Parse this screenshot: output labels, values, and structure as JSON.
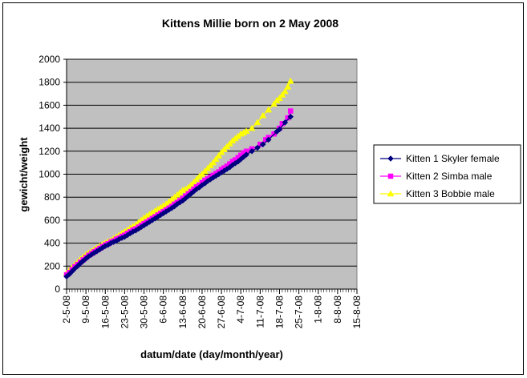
{
  "chart_data": {
    "type": "line",
    "title": "Kittens Millie born on 2 May 2008",
    "xlabel": "datum/date (day/month/year)",
    "ylabel": "gewicht/weight",
    "ylim": [
      0,
      2000
    ],
    "yticks": [
      0,
      200,
      400,
      600,
      800,
      1000,
      1200,
      1400,
      1600,
      1800,
      2000
    ],
    "xlim": [
      "2-5-08",
      "15-8-08"
    ],
    "xtick_labels": [
      "2-5-08",
      "9-5-08",
      "16-5-08",
      "23-5-08",
      "30-5-08",
      "6-6-08",
      "13-6-08",
      "20-6-08",
      "27-6-08",
      "4-7-08",
      "11-7-08",
      "18-7-08",
      "25-7-08",
      "1-8-08",
      "8-8-08",
      "15-8-08"
    ],
    "grid": "horizontal",
    "plot_background": "#c0c0c0",
    "legend_position": "right",
    "series": [
      {
        "name": "Kitten 1 Skyler female",
        "color": "#000080",
        "marker": "diamond",
        "points": [
          [
            "2-5-08",
            110
          ],
          [
            "3-5-08",
            130
          ],
          [
            "4-5-08",
            155
          ],
          [
            "5-5-08",
            180
          ],
          [
            "6-5-08",
            200
          ],
          [
            "7-5-08",
            225
          ],
          [
            "8-5-08",
            245
          ],
          [
            "9-5-08",
            265
          ],
          [
            "10-5-08",
            285
          ],
          [
            "11-5-08",
            300
          ],
          [
            "12-5-08",
            315
          ],
          [
            "13-5-08",
            330
          ],
          [
            "14-5-08",
            345
          ],
          [
            "15-5-08",
            360
          ],
          [
            "16-5-08",
            375
          ],
          [
            "17-5-08",
            385
          ],
          [
            "18-5-08",
            400
          ],
          [
            "19-5-08",
            410
          ],
          [
            "20-5-08",
            420
          ],
          [
            "21-5-08",
            435
          ],
          [
            "22-5-08",
            445
          ],
          [
            "23-5-08",
            455
          ],
          [
            "24-5-08",
            470
          ],
          [
            "25-5-08",
            485
          ],
          [
            "26-5-08",
            500
          ],
          [
            "27-5-08",
            510
          ],
          [
            "28-5-08",
            525
          ],
          [
            "29-5-08",
            540
          ],
          [
            "30-5-08",
            555
          ],
          [
            "31-5-08",
            570
          ],
          [
            "1-6-08",
            585
          ],
          [
            "2-6-08",
            600
          ],
          [
            "3-6-08",
            615
          ],
          [
            "4-6-08",
            630
          ],
          [
            "5-6-08",
            645
          ],
          [
            "6-6-08",
            660
          ],
          [
            "7-6-08",
            675
          ],
          [
            "8-6-08",
            690
          ],
          [
            "9-6-08",
            705
          ],
          [
            "10-6-08",
            720
          ],
          [
            "11-6-08",
            740
          ],
          [
            "12-6-08",
            755
          ],
          [
            "13-6-08",
            770
          ],
          [
            "14-6-08",
            790
          ],
          [
            "15-6-08",
            810
          ],
          [
            "16-6-08",
            830
          ],
          [
            "17-6-08",
            850
          ],
          [
            "18-6-08",
            870
          ],
          [
            "19-6-08",
            885
          ],
          [
            "20-6-08",
            905
          ],
          [
            "21-6-08",
            920
          ],
          [
            "22-6-08",
            940
          ],
          [
            "23-6-08",
            955
          ],
          [
            "24-6-08",
            970
          ],
          [
            "25-6-08",
            985
          ],
          [
            "26-6-08",
            1000
          ],
          [
            "27-6-08",
            1015
          ],
          [
            "28-6-08",
            1030
          ],
          [
            "29-6-08",
            1045
          ],
          [
            "30-6-08",
            1060
          ],
          [
            "1-7-08",
            1080
          ],
          [
            "2-7-08",
            1095
          ],
          [
            "3-7-08",
            1110
          ],
          [
            "4-7-08",
            1130
          ],
          [
            "5-7-08",
            1150
          ],
          [
            "6-7-08",
            1170
          ],
          [
            "8-7-08",
            1200
          ],
          [
            "10-7-08",
            1230
          ],
          [
            "12-7-08",
            1260
          ],
          [
            "14-7-08",
            1300
          ],
          [
            "17-7-08",
            1370
          ],
          [
            "18-7-08",
            1390
          ],
          [
            "20-7-08",
            1450
          ],
          [
            "22-7-08",
            1500
          ]
        ]
      },
      {
        "name": "Kitten 2 Simba male",
        "color": "#ff00ff",
        "marker": "square",
        "points": [
          [
            "2-5-08",
            125
          ],
          [
            "3-5-08",
            145
          ],
          [
            "4-5-08",
            170
          ],
          [
            "5-5-08",
            195
          ],
          [
            "6-5-08",
            215
          ],
          [
            "7-5-08",
            235
          ],
          [
            "8-5-08",
            255
          ],
          [
            "9-5-08",
            275
          ],
          [
            "10-5-08",
            295
          ],
          [
            "11-5-08",
            310
          ],
          [
            "12-5-08",
            325
          ],
          [
            "13-5-08",
            340
          ],
          [
            "14-5-08",
            355
          ],
          [
            "15-5-08",
            370
          ],
          [
            "16-5-08",
            385
          ],
          [
            "17-5-08",
            395
          ],
          [
            "18-5-08",
            410
          ],
          [
            "19-5-08",
            420
          ],
          [
            "20-5-08",
            435
          ],
          [
            "21-5-08",
            445
          ],
          [
            "22-5-08",
            460
          ],
          [
            "23-5-08",
            470
          ],
          [
            "24-5-08",
            485
          ],
          [
            "25-5-08",
            500
          ],
          [
            "26-5-08",
            515
          ],
          [
            "27-5-08",
            525
          ],
          [
            "28-5-08",
            540
          ],
          [
            "29-5-08",
            555
          ],
          [
            "30-5-08",
            570
          ],
          [
            "31-5-08",
            585
          ],
          [
            "1-6-08",
            600
          ],
          [
            "2-6-08",
            615
          ],
          [
            "3-6-08",
            630
          ],
          [
            "4-6-08",
            645
          ],
          [
            "5-6-08",
            660
          ],
          [
            "6-6-08",
            675
          ],
          [
            "7-6-08",
            690
          ],
          [
            "8-6-08",
            705
          ],
          [
            "9-6-08",
            720
          ],
          [
            "10-6-08",
            740
          ],
          [
            "11-6-08",
            755
          ],
          [
            "12-6-08",
            770
          ],
          [
            "13-6-08",
            790
          ],
          [
            "14-6-08",
            810
          ],
          [
            "15-6-08",
            830
          ],
          [
            "16-6-08",
            850
          ],
          [
            "17-6-08",
            870
          ],
          [
            "18-6-08",
            890
          ],
          [
            "19-6-08",
            905
          ],
          [
            "20-6-08",
            925
          ],
          [
            "21-6-08",
            945
          ],
          [
            "22-6-08",
            960
          ],
          [
            "23-6-08",
            975
          ],
          [
            "24-6-08",
            990
          ],
          [
            "25-6-08",
            1005
          ],
          [
            "26-6-08",
            1020
          ],
          [
            "27-6-08",
            1040
          ],
          [
            "28-6-08",
            1055
          ],
          [
            "29-6-08",
            1070
          ],
          [
            "30-6-08",
            1090
          ],
          [
            "1-7-08",
            1110
          ],
          [
            "2-7-08",
            1125
          ],
          [
            "3-7-08",
            1145
          ],
          [
            "4-7-08",
            1165
          ],
          [
            "5-7-08",
            1185
          ],
          [
            "6-7-08",
            1200
          ],
          [
            "8-7-08",
            1220
          ],
          [
            "11-7-08",
            1260
          ],
          [
            "13-7-08",
            1300
          ],
          [
            "14-7-08",
            1320
          ],
          [
            "16-7-08",
            1350
          ],
          [
            "18-7-08",
            1400
          ],
          [
            "19-7-08",
            1440
          ],
          [
            "21-7-08",
            1490
          ],
          [
            "22-7-08",
            1550
          ]
        ]
      },
      {
        "name": "Kitten 3 Bobbie male",
        "color": "#ffff00",
        "marker": "triangle",
        "points": [
          [
            "2-5-08",
            140
          ],
          [
            "3-5-08",
            165
          ],
          [
            "4-5-08",
            190
          ],
          [
            "5-5-08",
            215
          ],
          [
            "6-5-08",
            235
          ],
          [
            "7-5-08",
            260
          ],
          [
            "8-5-08",
            280
          ],
          [
            "9-5-08",
            300
          ],
          [
            "10-5-08",
            315
          ],
          [
            "11-5-08",
            330
          ],
          [
            "12-5-08",
            345
          ],
          [
            "13-5-08",
            360
          ],
          [
            "14-5-08",
            375
          ],
          [
            "15-5-08",
            390
          ],
          [
            "16-5-08",
            400
          ],
          [
            "17-5-08",
            415
          ],
          [
            "18-5-08",
            425
          ],
          [
            "19-5-08",
            440
          ],
          [
            "20-5-08",
            455
          ],
          [
            "21-5-08",
            470
          ],
          [
            "22-5-08",
            485
          ],
          [
            "23-5-08",
            500
          ],
          [
            "24-5-08",
            515
          ],
          [
            "25-5-08",
            530
          ],
          [
            "26-5-08",
            545
          ],
          [
            "27-5-08",
            560
          ],
          [
            "28-5-08",
            580
          ],
          [
            "29-5-08",
            600
          ],
          [
            "30-5-08",
            620
          ],
          [
            "31-5-08",
            635
          ],
          [
            "1-6-08",
            650
          ],
          [
            "2-6-08",
            665
          ],
          [
            "3-6-08",
            680
          ],
          [
            "4-6-08",
            695
          ],
          [
            "5-6-08",
            710
          ],
          [
            "6-6-08",
            725
          ],
          [
            "7-6-08",
            740
          ],
          [
            "8-6-08",
            760
          ],
          [
            "9-6-08",
            780
          ],
          [
            "10-6-08",
            800
          ],
          [
            "11-6-08",
            820
          ],
          [
            "12-6-08",
            840
          ],
          [
            "13-6-08",
            860
          ],
          [
            "14-6-08",
            870
          ],
          [
            "15-6-08",
            885
          ],
          [
            "16-6-08",
            905
          ],
          [
            "17-6-08",
            930
          ],
          [
            "18-6-08",
            955
          ],
          [
            "19-6-08",
            980
          ],
          [
            "20-6-08",
            1000
          ],
          [
            "21-6-08",
            1025
          ],
          [
            "22-6-08",
            1050
          ],
          [
            "23-6-08",
            1075
          ],
          [
            "24-6-08",
            1100
          ],
          [
            "25-6-08",
            1130
          ],
          [
            "26-6-08",
            1160
          ],
          [
            "27-6-08",
            1190
          ],
          [
            "28-6-08",
            1215
          ],
          [
            "29-6-08",
            1240
          ],
          [
            "30-6-08",
            1265
          ],
          [
            "1-7-08",
            1290
          ],
          [
            "2-7-08",
            1310
          ],
          [
            "3-7-08",
            1330
          ],
          [
            "4-7-08",
            1350
          ],
          [
            "5-7-08",
            1360
          ],
          [
            "6-7-08",
            1375
          ],
          [
            "8-7-08",
            1400
          ],
          [
            "10-7-08",
            1450
          ],
          [
            "12-7-08",
            1510
          ],
          [
            "14-7-08",
            1560
          ],
          [
            "16-7-08",
            1610
          ],
          [
            "17-7-08",
            1640
          ],
          [
            "18-7-08",
            1660
          ],
          [
            "19-7-08",
            1690
          ],
          [
            "20-7-08",
            1720
          ],
          [
            "21-7-08",
            1760
          ],
          [
            "22-7-08",
            1810
          ]
        ]
      }
    ]
  }
}
